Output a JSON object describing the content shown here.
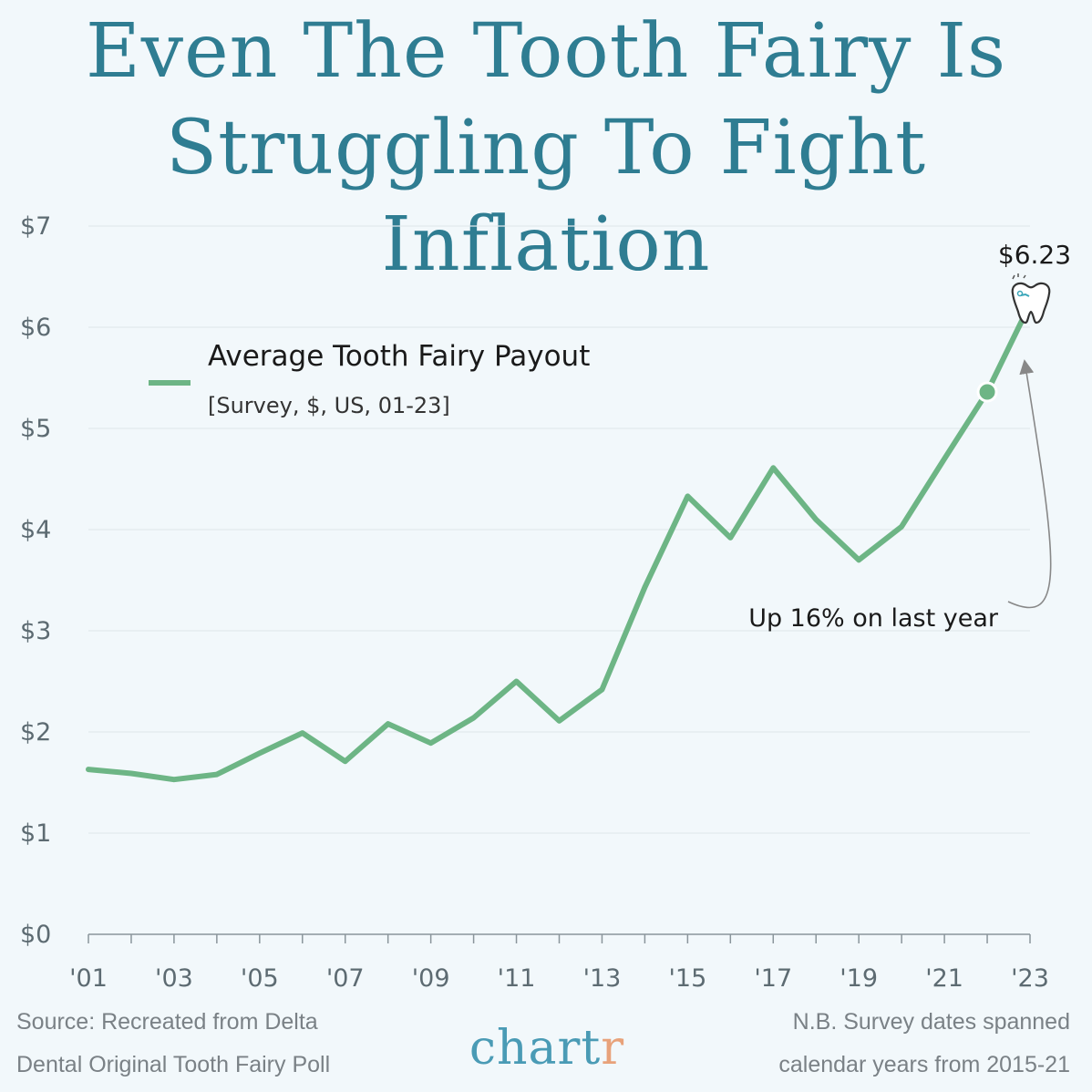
{
  "title": {
    "line1": "Even The Tooth Fairy Is",
    "line2": "Struggling To Fight Inflation"
  },
  "chart_data": {
    "type": "line",
    "x": [
      2001,
      2002,
      2003,
      2004,
      2005,
      2006,
      2007,
      2008,
      2009,
      2010,
      2011,
      2012,
      2013,
      2014,
      2015,
      2016,
      2017,
      2018,
      2019,
      2020,
      2021,
      2022,
      2023
    ],
    "series": [
      {
        "name": "Average Tooth Fairy Payout",
        "values": [
          1.63,
          1.59,
          1.53,
          1.58,
          1.79,
          1.99,
          1.71,
          2.08,
          1.89,
          2.14,
          2.5,
          2.11,
          2.42,
          3.43,
          4.33,
          3.92,
          4.61,
          4.1,
          3.7,
          4.03,
          4.7,
          5.36,
          6.23
        ],
        "color": "#6db585"
      }
    ],
    "legend_subtitle": "[Survey, $, US, 01-23]",
    "yticks": [
      "$0",
      "$1",
      "$2",
      "$3",
      "$4",
      "$5",
      "$6",
      "$7"
    ],
    "xticks": [
      "'01",
      "'03",
      "'05",
      "'07",
      "'09",
      "'11",
      "'13",
      "'15",
      "'17",
      "'19",
      "'21",
      "'23"
    ],
    "xlim": [
      2001,
      2023
    ],
    "ylim": [
      0,
      7
    ],
    "grid": true,
    "legend_position": "top-left",
    "highlight_point": {
      "x": 2022,
      "y": 5.36
    },
    "end_label": "$6.23",
    "annotation": "Up 16% on last year"
  },
  "footer": {
    "source_line1": "Source: Recreated from Delta",
    "source_line2": "Dental Original Tooth Fairy Poll",
    "note_line1": "N.B. Survey dates spanned",
    "note_line2": "calendar years from 2015-21",
    "logo": "chartr"
  },
  "icons": {
    "end_marker": "tooth-icon"
  }
}
